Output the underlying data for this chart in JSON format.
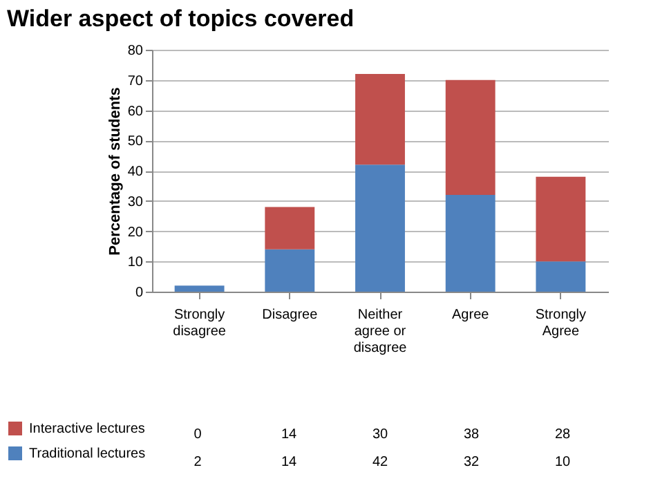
{
  "chart_data": {
    "type": "bar",
    "title": "Wider aspect of topics covered",
    "ylabel": "Percentage of students",
    "categories": [
      "Strongly disagree",
      "Disagree",
      "Neither agree or disagree",
      "Agree",
      "Strongly Agree"
    ],
    "series": [
      {
        "name": "Traditional lectures",
        "color": "#4f81bd",
        "values": [
          2,
          14,
          42,
          32,
          10
        ]
      },
      {
        "name": "Interactive lectures",
        "color": "#c0504d",
        "values": [
          0,
          14,
          30,
          38,
          28
        ]
      }
    ],
    "stacked": true,
    "ylim": [
      0,
      80
    ],
    "yticks": [
      0,
      10,
      20,
      30,
      40,
      50,
      60,
      70,
      80
    ],
    "grid": "y",
    "legend": "bottom left",
    "data_labels": true
  }
}
